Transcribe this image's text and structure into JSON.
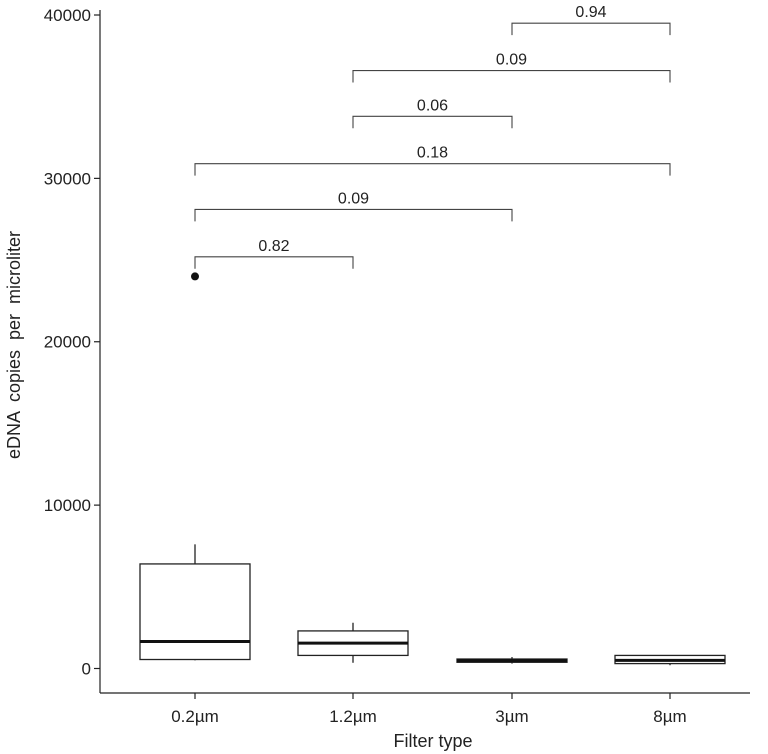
{
  "chart_data": {
    "type": "box",
    "xlabel": "Filter type",
    "ylabel": "eDNA  copies  per  microliter",
    "ylim": [
      -1500,
      40000
    ],
    "yticks": [
      0,
      10000,
      20000,
      30000,
      40000
    ],
    "ytick_labels": [
      "0",
      "10000",
      "20000",
      "30000",
      "40000"
    ],
    "grid": false,
    "categories": [
      "0.2µm",
      "1.2µm",
      "3µm",
      "8µm"
    ],
    "boxes": [
      {
        "category": "0.2µm",
        "whisker_low": 500,
        "q1": 550,
        "median": 1650,
        "q3": 6400,
        "whisker_high": 7600,
        "outliers": [
          24000
        ]
      },
      {
        "category": "1.2µm",
        "whisker_low": 350,
        "q1": 800,
        "median": 1550,
        "q3": 2300,
        "whisker_high": 2800,
        "outliers": []
      },
      {
        "category": "3µm",
        "whisker_low": 300,
        "q1": 380,
        "median": 480,
        "q3": 580,
        "whisker_high": 700,
        "outliers": []
      },
      {
        "category": "8µm",
        "whisker_low": 200,
        "q1": 300,
        "median": 500,
        "q3": 800,
        "whisker_high": 800,
        "outliers": []
      }
    ],
    "comparisons": [
      {
        "from": "0.2µm",
        "to": "1.2µm",
        "p_value": "0.82",
        "y": 25200
      },
      {
        "from": "0.2µm",
        "to": "3µm",
        "p_value": "0.09",
        "y": 28100
      },
      {
        "from": "0.2µm",
        "to": "8µm",
        "p_value": "0.18",
        "y": 30900
      },
      {
        "from": "1.2µm",
        "to": "3µm",
        "p_value": "0.06",
        "y": 33800
      },
      {
        "from": "1.2µm",
        "to": "8µm",
        "p_value": "0.09",
        "y": 36600
      },
      {
        "from": "3µm",
        "to": "8µm",
        "p_value": "0.94",
        "y": 39500
      }
    ]
  }
}
